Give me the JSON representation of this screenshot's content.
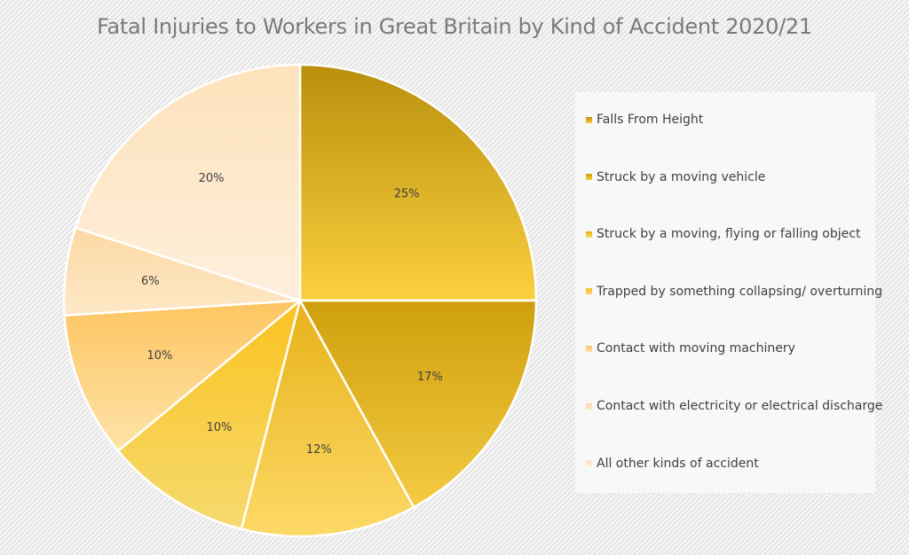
{
  "chart_data": {
    "type": "pie",
    "title": "Fatal Injuries to Workers in Great Britain by Kind of Accident 2020/21",
    "legend_position": "right",
    "slices": [
      {
        "label": "Falls From Height",
        "value": 25,
        "display": "25%",
        "color_start": "#b8900b",
        "color_end": "#fbd040"
      },
      {
        "label": "Struck by a moving vehicle",
        "value": 17,
        "display": "17%",
        "color_start": "#cf9f0c",
        "color_end": "#f3cb42"
      },
      {
        "label": "Struck by a moving, flying or falling object",
        "value": 12,
        "display": "12%",
        "color_start": "#e6b219",
        "color_end": "#fdd967"
      },
      {
        "label": "Trapped by something collapsing/ overturning",
        "value": 10,
        "display": "10%",
        "color_start": "#fbc21f",
        "color_end": "#f5da6f"
      },
      {
        "label": "Contact with moving machinery",
        "value": 10,
        "display": "10%",
        "color_start": "#fdc561",
        "color_end": "#fde3a8"
      },
      {
        "label": "Contact with electricity or electrical discharge",
        "value": 6,
        "display": "6%",
        "color_start": "#fdd9a4",
        "color_end": "#fde8c7"
      },
      {
        "label": "All other kinds of accident",
        "value": 20,
        "display": "20%",
        "color_start": "#fde2bb",
        "color_end": "#feefdc"
      }
    ]
  }
}
